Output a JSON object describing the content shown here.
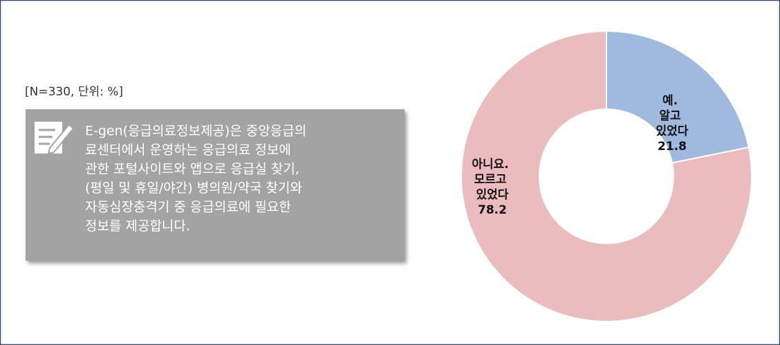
{
  "chart_data": {
    "type": "pie",
    "donut": true,
    "subtitle": "[N=330, 단위: %]",
    "note_lines": [
      "E-gen(응급의료정보제공)은 중앙응급의",
      "료센터에서 운영하는 응급의료 정보에",
      "관한 포털사이트와 앱으로 응급실 찾기,",
      "(평일 및 휴일/야간) 병의원/약국 찾기와",
      "자동심장충격기 중 응급의료에 필요한",
      "정보를 제공합니다."
    ],
    "categories": [
      "예. 알고 있었다",
      "아니요. 모르고 있었다"
    ],
    "values": [
      21.8,
      78.2
    ],
    "colors": [
      "#9fbade",
      "#ebbcbd"
    ]
  }
}
